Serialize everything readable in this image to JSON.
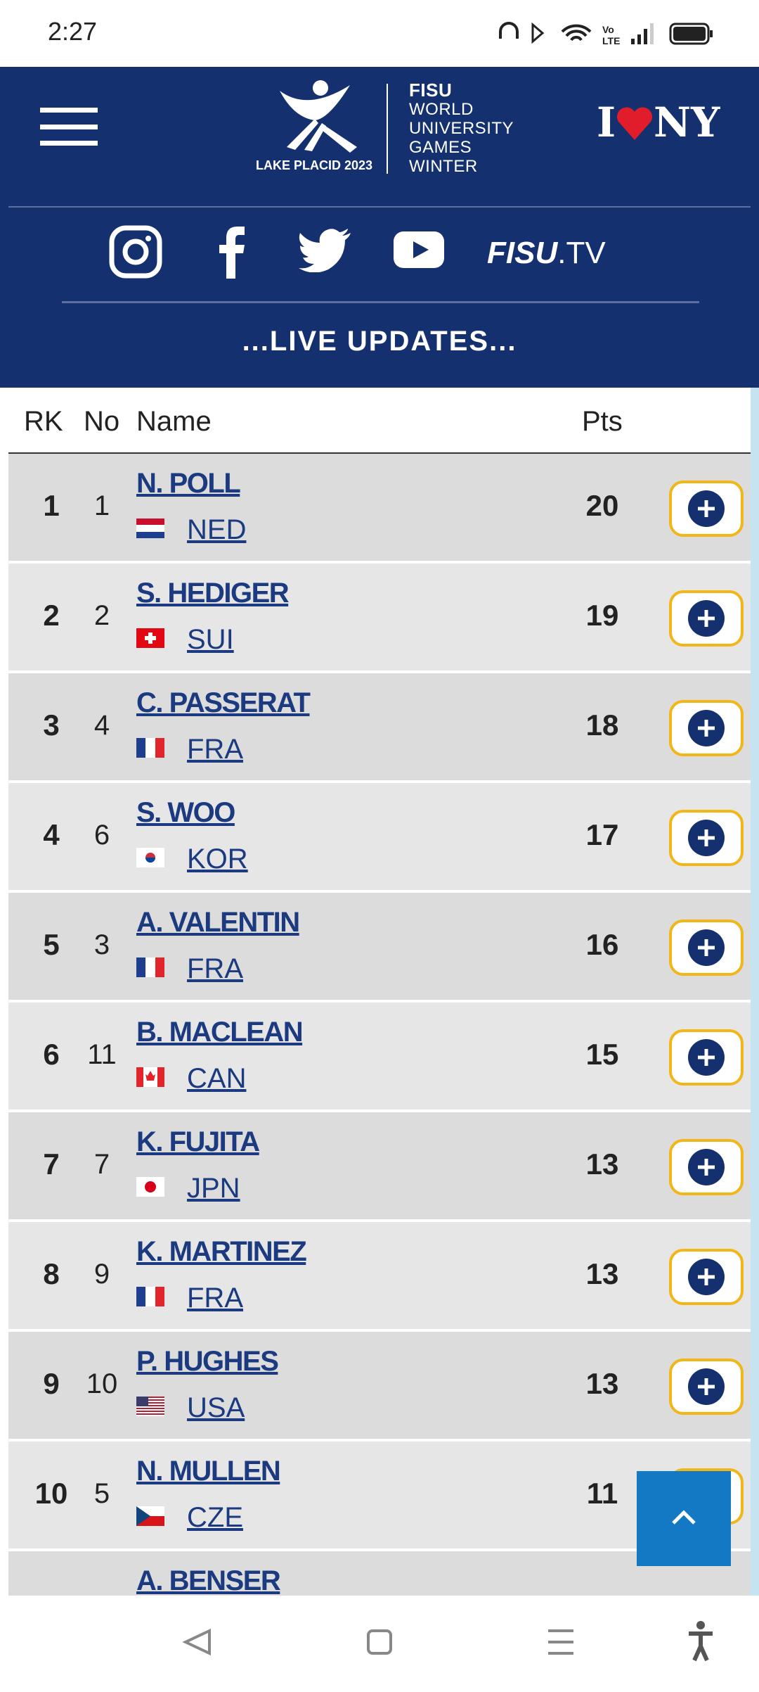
{
  "status_bar": {
    "time": "2:27"
  },
  "header": {
    "logo_caption": "LAKE PLACID 2023",
    "fisu_lines": [
      "FISU",
      "WORLD",
      "UNIVERSITY",
      "GAMES",
      "WINTER"
    ],
    "sponsor": {
      "left": "I",
      "right": "NY"
    },
    "fisu_tv": {
      "brand": "FISU",
      "suffix": ".TV"
    },
    "banner": "...LIVE UPDATES..."
  },
  "table": {
    "columns": [
      "RK",
      "No",
      "Name",
      "Pts"
    ],
    "rows": [
      {
        "rank": 1,
        "no": 1,
        "name": "N. POLL",
        "country": "NED",
        "pts": 20
      },
      {
        "rank": 2,
        "no": 2,
        "name": "S. HEDIGER",
        "country": "SUI",
        "pts": 19
      },
      {
        "rank": 3,
        "no": 4,
        "name": "C. PASSERAT",
        "country": "FRA",
        "pts": 18
      },
      {
        "rank": 4,
        "no": 6,
        "name": "S. WOO",
        "country": "KOR",
        "pts": 17
      },
      {
        "rank": 5,
        "no": 3,
        "name": "A. VALENTIN",
        "country": "FRA",
        "pts": 16
      },
      {
        "rank": 6,
        "no": 11,
        "name": "B. MACLEAN",
        "country": "CAN",
        "pts": 15
      },
      {
        "rank": 7,
        "no": 7,
        "name": "K. FUJITA",
        "country": "JPN",
        "pts": 13
      },
      {
        "rank": 8,
        "no": 9,
        "name": "K. MARTINEZ",
        "country": "FRA",
        "pts": 13
      },
      {
        "rank": 9,
        "no": 10,
        "name": "P. HUGHES",
        "country": "USA",
        "pts": 13
      },
      {
        "rank": 10,
        "no": 5,
        "name": "N. MULLEN",
        "country": "CZE",
        "pts": 11
      }
    ],
    "partial_row": {
      "name": "A. BENSER"
    }
  }
}
